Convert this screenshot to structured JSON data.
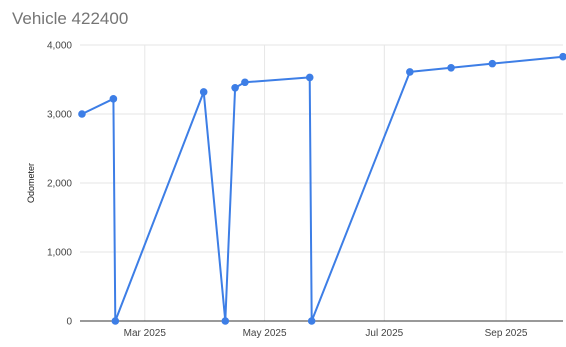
{
  "chart_data": {
    "type": "line",
    "title": "Vehicle 422400",
    "ylabel": "Odometer",
    "xlabel": "",
    "ylim": [
      0,
      4000
    ],
    "xlim": [
      "2025-01-27",
      "2025-09-30"
    ],
    "y_ticks": [
      0,
      1000,
      2000,
      3000,
      4000
    ],
    "y_tick_labels": [
      "0",
      "1,000",
      "2,000",
      "3,000",
      "4,000"
    ],
    "x_ticks": [
      "2025-03-01",
      "2025-05-01",
      "2025-07-01",
      "2025-09-01"
    ],
    "x_tick_labels": [
      "Mar 2025",
      "May 2025",
      "Jul 2025",
      "Sep 2025"
    ],
    "grid": true,
    "legend": "none",
    "series_color": "#3d7ee6",
    "series": [
      {
        "x": [
          "2025-01-28",
          "2025-02-13",
          "2025-02-14",
          "2025-03-31",
          "2025-04-11",
          "2025-04-16",
          "2025-04-21",
          "2025-05-24",
          "2025-05-25",
          "2025-07-14",
          "2025-08-04",
          "2025-08-25",
          "2025-09-30"
        ],
        "y": [
          3000,
          3220,
          0,
          3320,
          0,
          3380,
          3460,
          3530,
          0,
          3610,
          3670,
          3730,
          3830
        ]
      }
    ]
  }
}
